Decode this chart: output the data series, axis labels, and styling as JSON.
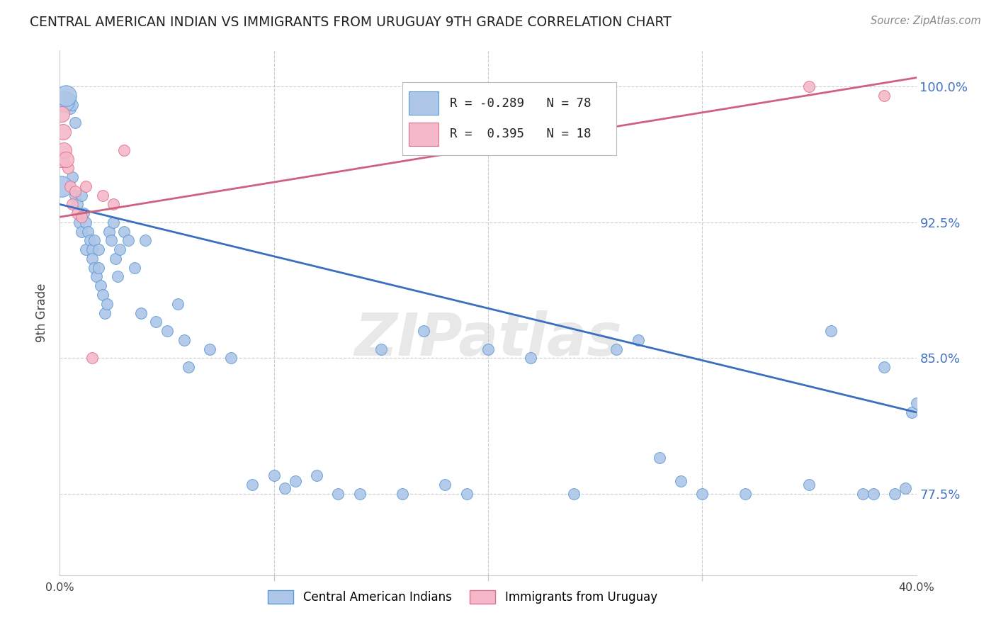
{
  "title": "CENTRAL AMERICAN INDIAN VS IMMIGRANTS FROM URUGUAY 9TH GRADE CORRELATION CHART",
  "source": "Source: ZipAtlas.com",
  "ylabel": "9th Grade",
  "yticks": [
    77.5,
    85.0,
    92.5,
    100.0
  ],
  "ytick_labels": [
    "77.5%",
    "85.0%",
    "92.5%",
    "100.0%"
  ],
  "xmin": 0.0,
  "xmax": 40.0,
  "ymin": 73.0,
  "ymax": 102.0,
  "legend_blue_r": "-0.289",
  "legend_blue_n": "78",
  "legend_pink_r": "0.395",
  "legend_pink_n": "18",
  "blue_color": "#aec6e8",
  "blue_edge_color": "#5b9bd5",
  "pink_color": "#f4b8c8",
  "pink_edge_color": "#e07090",
  "blue_line_color": "#3a6fbf",
  "pink_line_color": "#d06080",
  "watermark": "ZIPatlas",
  "blue_regression": [
    0.0,
    93.5,
    40.0,
    82.0
  ],
  "pink_regression": [
    0.0,
    92.8,
    40.0,
    100.5
  ],
  "blue_x": [
    0.1,
    0.2,
    0.3,
    0.4,
    0.5,
    0.5,
    0.6,
    0.6,
    0.7,
    0.7,
    0.8,
    0.9,
    1.0,
    1.0,
    1.1,
    1.2,
    1.2,
    1.3,
    1.4,
    1.5,
    1.5,
    1.6,
    1.6,
    1.7,
    1.8,
    1.8,
    1.9,
    2.0,
    2.1,
    2.2,
    2.3,
    2.4,
    2.5,
    2.6,
    2.7,
    2.8,
    3.0,
    3.2,
    3.5,
    3.8,
    4.0,
    4.5,
    5.0,
    5.5,
    5.8,
    6.0,
    7.0,
    8.0,
    9.0,
    10.0,
    10.5,
    11.0,
    12.0,
    13.0,
    14.0,
    15.0,
    16.0,
    17.0,
    18.0,
    19.0,
    20.0,
    22.0,
    24.0,
    26.0,
    27.0,
    28.0,
    29.0,
    30.0,
    32.0,
    35.0,
    36.0,
    37.5,
    38.0,
    38.5,
    39.0,
    39.5,
    39.8,
    40.0
  ],
  "blue_y": [
    94.5,
    99.2,
    99.5,
    99.0,
    99.3,
    98.8,
    99.0,
    95.0,
    98.0,
    94.0,
    93.5,
    92.5,
    94.0,
    92.0,
    93.0,
    92.5,
    91.0,
    92.0,
    91.5,
    91.0,
    90.5,
    90.0,
    91.5,
    89.5,
    91.0,
    90.0,
    89.0,
    88.5,
    87.5,
    88.0,
    92.0,
    91.5,
    92.5,
    90.5,
    89.5,
    91.0,
    92.0,
    91.5,
    90.0,
    87.5,
    91.5,
    87.0,
    86.5,
    88.0,
    86.0,
    84.5,
    85.5,
    85.0,
    78.0,
    78.5,
    77.8,
    78.2,
    78.5,
    77.5,
    77.5,
    85.5,
    77.5,
    86.5,
    78.0,
    77.5,
    85.5,
    85.0,
    77.5,
    85.5,
    86.0,
    79.5,
    78.2,
    77.5,
    77.5,
    78.0,
    86.5,
    77.5,
    77.5,
    84.5,
    77.5,
    77.8,
    82.0,
    82.5
  ],
  "pink_x": [
    0.05,
    0.1,
    0.15,
    0.2,
    0.3,
    0.4,
    0.5,
    0.6,
    0.7,
    0.8,
    1.0,
    1.2,
    1.5,
    2.0,
    2.5,
    3.0,
    35.0,
    38.5
  ],
  "pink_y": [
    96.0,
    98.5,
    97.5,
    96.5,
    96.0,
    95.5,
    94.5,
    93.5,
    94.2,
    93.0,
    92.8,
    94.5,
    85.0,
    94.0,
    93.5,
    96.5,
    100.0,
    99.5
  ],
  "big_blue_size": 450,
  "big_pink_size": 250
}
